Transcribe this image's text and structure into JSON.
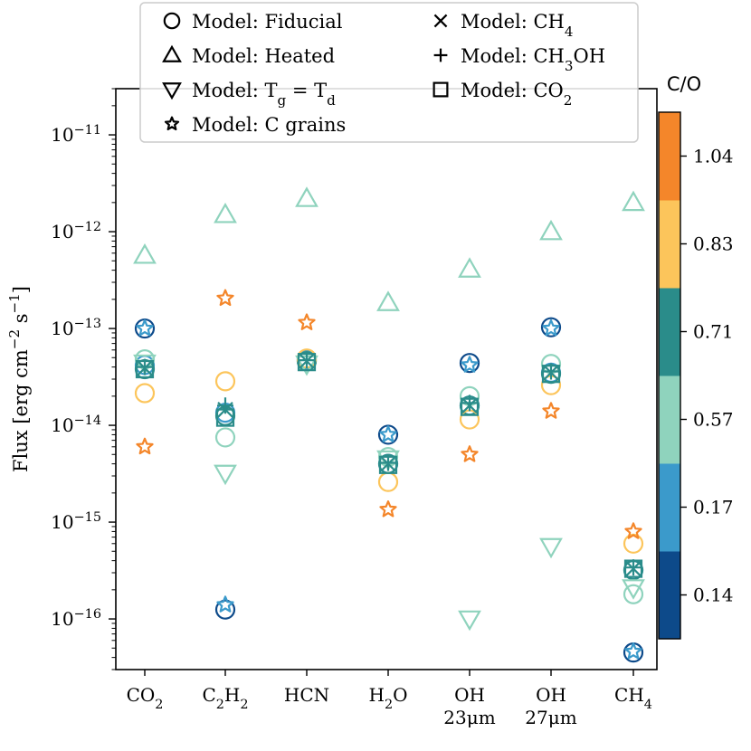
{
  "chart_data": {
    "type": "scatter",
    "y_scale": "log",
    "ylim": [
      3e-17,
      3e-11
    ],
    "ylabel": "Flux [erg cm$^{-2}$ s$^{-1}$]",
    "ylabel_parts": {
      "prefix": "Flux [erg cm",
      "sup1": "−2",
      "mid": " s",
      "sup2": "−1",
      "suffix": "]"
    },
    "y_ticks": [
      {
        "value": 1e-16,
        "label": "10",
        "exp": "−16"
      },
      {
        "value": 1e-15,
        "label": "10",
        "exp": "−15"
      },
      {
        "value": 1e-14,
        "label": "10",
        "exp": "−14"
      },
      {
        "value": 1e-13,
        "label": "10",
        "exp": "−13"
      },
      {
        "value": 1e-12,
        "label": "10",
        "exp": "−12"
      },
      {
        "value": 1e-11,
        "label": "10",
        "exp": "−11"
      }
    ],
    "categories": [
      {
        "line1": "CO",
        "sub": "2",
        "line2": ""
      },
      {
        "line1": "C",
        "sub": "2",
        "after": "H",
        "sub2": "2",
        "line2": ""
      },
      {
        "line1": "HCN",
        "sub": "",
        "line2": ""
      },
      {
        "line1": "H",
        "sub": "2",
        "after": "O",
        "line2": ""
      },
      {
        "line1": "OH",
        "sub": "",
        "line2": "23μm"
      },
      {
        "line1": "OH",
        "sub": "",
        "line2": "27μm"
      },
      {
        "line1": "CH",
        "sub": "4",
        "line2": ""
      }
    ],
    "colorbar": {
      "title": "C/O",
      "levels": [
        {
          "label": "0.14",
          "color": "#0d4a8a"
        },
        {
          "label": "0.17",
          "color": "#3b9acb"
        },
        {
          "label": "0.57",
          "color": "#8fd3bd"
        },
        {
          "label": "0.71",
          "color": "#2a8c8a"
        },
        {
          "label": "0.83",
          "color": "#fcc55b"
        },
        {
          "label": "1.04",
          "color": "#f4862a"
        }
      ]
    },
    "legend": [
      {
        "marker": "circle",
        "text": "Model: Fiducial"
      },
      {
        "marker": "triangle-up",
        "text": "Model: Heated"
      },
      {
        "marker": "triangle-down",
        "text": "Model: T",
        "sub": "g",
        "text2": " = T",
        "sub2": "d"
      },
      {
        "marker": "star",
        "text": "Model: C grains"
      },
      {
        "marker": "x",
        "text": "Model: CH",
        "sub": "4"
      },
      {
        "marker": "plus",
        "text": "Model: CH",
        "sub": "3",
        "text2": "OH"
      },
      {
        "marker": "square",
        "text": "Model: CO",
        "sub": "2"
      }
    ],
    "series": [
      {
        "name": "Fiducial C/O=0.14",
        "marker": "circle",
        "color": "#0d4a8a",
        "values": [
          1e-13,
          1.25e-16,
          4.8e-14,
          8e-15,
          4.4e-14,
          1.03e-13,
          4.5e-17
        ]
      },
      {
        "name": "Fiducial C/O=0.17",
        "marker": "circle",
        "color": "#3b9acb",
        "values": [
          4.2e-14,
          1.35e-14,
          4.7e-14,
          4e-15,
          1.6e-14,
          3.5e-14,
          3.2e-16
        ]
      },
      {
        "name": "Fiducial C/O=0.57",
        "marker": "circle",
        "color": "#8fd3bd",
        "values": [
          4.8e-14,
          7.5e-15,
          4.6e-14,
          4.7e-15,
          2e-14,
          4.3e-14,
          1.8e-16
        ]
      },
      {
        "name": "Fiducial C/O=0.71",
        "marker": "circle",
        "color": "#2a8c8a",
        "values": [
          3.8e-14,
          1.25e-14,
          4.6e-14,
          4e-15,
          1.6e-14,
          3.4e-14,
          3.2e-16
        ]
      },
      {
        "name": "Fiducial C/O=0.83",
        "marker": "circle",
        "color": "#fcc55b",
        "values": [
          2.15e-14,
          2.85e-14,
          4.9e-14,
          2.6e-15,
          1.15e-14,
          2.6e-14,
          6e-16
        ]
      },
      {
        "name": "Heated C/O=0.57",
        "marker": "triangle-up",
        "color": "#8fd3bd",
        "values": [
          5.7e-13,
          1.5e-12,
          2.2e-12,
          1.85e-13,
          4.1e-13,
          1e-12,
          2e-12
        ]
      },
      {
        "name": "Tg=Td C/O=0.57",
        "marker": "triangle-down",
        "color": "#8fd3bd",
        "values": [
          4.4e-14,
          3.2e-15,
          4.3e-14,
          4.5e-15,
          1e-16,
          5.6e-16,
          2.1e-16
        ]
      },
      {
        "name": "C grains C/O=0.17",
        "marker": "star",
        "color": "#3b9acb",
        "values": [
          1e-13,
          1.4e-16,
          null,
          8e-15,
          4.2e-14,
          1e-13,
          4.6e-17
        ]
      },
      {
        "name": "C grains C/O=1.04",
        "marker": "star",
        "color": "#f4862a",
        "values": [
          6e-15,
          2.05e-13,
          1.15e-13,
          1.35e-15,
          5e-15,
          1.4e-14,
          8e-16
        ]
      },
      {
        "name": "CH4 C/O=0.71",
        "marker": "x",
        "color": "#2a8c8a",
        "values": [
          3.9e-14,
          1.45e-14,
          4.6e-14,
          4e-15,
          1.6e-14,
          3.5e-14,
          3.3e-16
        ]
      },
      {
        "name": "CH3OH C/O=0.71",
        "marker": "plus",
        "color": "#2a8c8a",
        "values": [
          4e-14,
          1.6e-14,
          4.7e-14,
          4.1e-15,
          1.7e-14,
          3.6e-14,
          3.4e-16
        ]
      },
      {
        "name": "CO2 C/O=0.71",
        "marker": "square",
        "color": "#2a8c8a",
        "values": [
          3.8e-14,
          1.2e-14,
          4.5e-14,
          3.9e-15,
          1.55e-14,
          3.4e-14,
          3.3e-16
        ]
      }
    ]
  }
}
